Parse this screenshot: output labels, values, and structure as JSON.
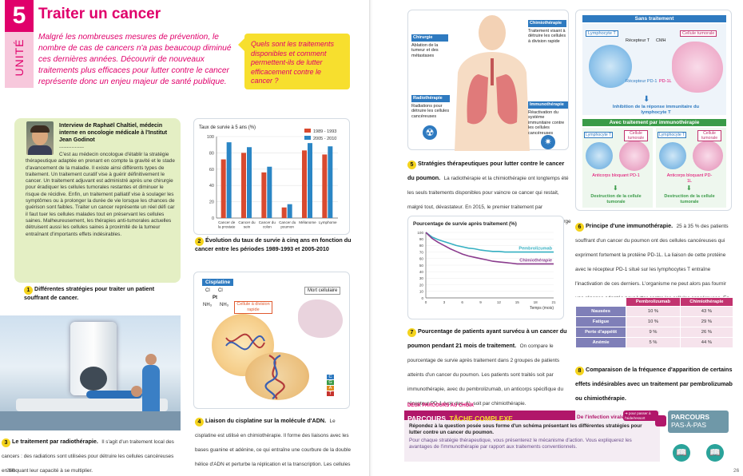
{
  "unit": {
    "number": "5",
    "word": "UNITÉ",
    "title": "Traiter un cancer",
    "intro": "Malgré les nombreuses mesures de prévention, le nombre de cas de cancers n'a pas beaucoup diminué ces dernières années. Découvrir de nouveaux traitements plus efficaces pour lutter contre le cancer représente donc un enjeu majeur de santé publique.",
    "question": "Quels sont les traitements disponibles et comment permettent-ils de lutter efficacement contre le cancer ?"
  },
  "doc1": {
    "num": "1",
    "interview_title": "Interview de Raphaël Chaltiel, médecin interne en oncologie médicale à l'Institut Jean Godinot",
    "dots": "................",
    "text": "C'est au médecin oncologue d'établir la stratégie thérapeutique adaptée en prenant en compte la gravité et le stade d'avancement de la maladie. Il existe ainsi différents types de traitement. Un traitement curatif vise à guérir définitivement le cancer. Un traitement adjuvant est administré après une chirurgie pour éradiquer les cellules tumorales restantes et diminuer le risque de récidive. Enfin, un traitement palliatif vise à soulager les symptômes ou à prolonger la durée de vie lorsque les chances de guérison sont faibles. Traiter un cancer représente un réel défi car il faut tuer les cellules malades tout en préservant les cellules saines. Malheureusement, les thérapies anti-tumorales actuelles détruisent aussi les cellules saines à proximité de la tumeur entraînant d'importants effets indésirables.",
    "caption": "Différentes stratégies pour traiter un patient souffrant de cancer."
  },
  "doc2": {
    "num": "2",
    "caption": "Évolution du taux de survie à cinq ans en fonction du cancer entre les périodes 1989-1993 et 2005-2010"
  },
  "doc3": {
    "num": "3",
    "caption_bold": "Le traitement par radiothérapie.",
    "caption_text": "Il s'agit d'un traitement local des cancers : des radiations sont utilisées pour détruire les cellules cancéreuses en bloquant leur capacité à se multiplier."
  },
  "doc4": {
    "num": "4",
    "caption_bold": "Liaison du cisplatine sur la molécule d'ADN.",
    "caption_text": "Le cisplatine est utilisé en chimiothérapie. Il forme des liaisons avec les bases guanine et adénine, ce qui entraîne une courbure de la double hélice d'ADN et perturbe la réplication et la transcription. Les cellules en division rapide sont ainsi tuées. Les cellules matures, qui ne se divisent pas (ou peu) sont épargnées.",
    "label_cisplatine": "Cisplatine",
    "label_cellule": "Cellule à division rapide",
    "label_mort": "Mort cellulaire",
    "formula_cl1": "Cl",
    "formula_cl2": "Cl",
    "formula_pt": "Pt",
    "formula_nh1": "NH₃",
    "formula_nh2": "NH₃",
    "bases": [
      "C",
      "G",
      "A",
      "T"
    ]
  },
  "doc5": {
    "num": "5",
    "caption_bold": "Stratégies thérapeutiques pour lutter contre le cancer du poumon.",
    "caption_text": "La radiothérapie et la chimiothérapie ont longtemps été les seuls traitements disponibles pour vaincre ce cancer qui restait, malgré tout, dévastateur. En 2015, le premier traitement par immunothérapie est mis sur le marché et révolutionne la prise en charge du cancer du poumon.",
    "chir_title": "Chirurgie",
    "chir_text": "Ablation de la tumeur et des métastases",
    "chimio_title": "Chimiothérapie",
    "chimio_text": "Traitement visant à détruire les cellules à division rapide",
    "radio_title": "Radiothérapie",
    "radio_text": "Radiations pour détruire les cellules cancéreuses",
    "immuno_title": "Immunothérapie",
    "immuno_text": "Réactivation du système immunitaire contre les cellules cancéreuses"
  },
  "doc6": {
    "num": "6",
    "caption_bold": "Principe d'une immunothérapie.",
    "caption_text": "25 à 35 % des patients souffrant d'un cancer du poumon ont des cellules cancéreuses qui expriment fortement la protéine PD-1L. La liaison de cette protéine avec le récepteur PD-1 situé sur les lymphocytes T entraîne l'inactivation de ces derniers. L'organisme ne peut alors pas fournir une réponse adaptée pour lutter contre les cellules cancéreuses. En bloquant la liaison PD-1-PD-1L, l'immunothérapie permet de lever cette inhibition. Il existe d'autres immunothérapies comme la vaccination thérapeutique (voir chapitre 10).",
    "sans_title": "Sans traitement",
    "lympho": "Lymphocyte T",
    "tumorale": "Cellule tumorale",
    "recepteur_tcr": "Récepteur T",
    "cmh": "CMH",
    "recepteur_pd1": "Récepteur PD-1",
    "pd1l": "PD-1L",
    "inhibition": "Inhibition de la réponse immunitaire du lymphocyte T",
    "avec_title": "Avec traitement par immunothérapie",
    "lympho2": "Lymphocyte T",
    "tumorale2": "Cellule tumorale",
    "lympho3": "Lymphocyte T",
    "tumorale3": "Cellule tumorale",
    "anticorps1": "Anticorps bloquant PD-1",
    "anticorps2": "Anticorps bloquant PD-1L",
    "destruction1": "Destruction de la cellule tumorale",
    "destruction2": "Destruction de la cellule tumorale"
  },
  "doc7": {
    "num": "7",
    "caption_bold": "Pourcentage de patients ayant survécu à un cancer du poumon pendant 21 mois de traitement.",
    "caption_text": "On compare le pourcentage de survie après traitement dans 2 groupes de patients atteints d'un cancer du poumon. Les patients sont traités soit par immunothérapie, avec du pembrolizumab, un anticorps spécifique du récepteur PD-1 (voir doc. 6), soit par chimiothérapie."
  },
  "doc8": {
    "num": "8",
    "caption_bold": "Comparaison de la fréquence d'apparition de certains effets indésirables avec un traitement par pembrolizumab ou chimiothérapie.",
    "headers": [
      "",
      "Pembrolizumab",
      "Chimiothérapie"
    ],
    "rows": [
      [
        "Nausées",
        "10 %",
        "43 %"
      ],
      [
        "Fatigue",
        "10 %",
        "29 %"
      ],
      [
        "Perte d'appétit",
        "9 %",
        "26 %"
      ],
      [
        "Anémie",
        "5 %",
        "44 %"
      ]
    ]
  },
  "parcours": {
    "deux": "DEUX PARCOURS AU CHOIX",
    "title_a": "PARCOURS",
    "title_b": "TÂCHE COMPLEXE",
    "tag": "De l'infection virale à",
    "pill": "➜ pour passer à l'aide/ressort",
    "task_bold": "Répondez à la question posée sous forme d'un schéma présentant les différentes stratégies pour lutter contre un cancer du poumon.",
    "task_text": "Pour chaque stratégie thérapeutique, vous présenterez le mécanisme d'action. Vous expliquerez les avantages de l'immunothérapie par rapport aux traitements conventionnels.",
    "pas_a": "PARCOURS",
    "pas_b": "PAS-À-PAS"
  },
  "page_left": "266",
  "page_right": "26",
  "chart_data": [
    {
      "type": "bar",
      "ylabel": "Taux de survie à 5 ans (%)",
      "ylim": [
        0,
        100
      ],
      "yticks": [
        0,
        20,
        40,
        60,
        80,
        100
      ],
      "categories": [
        "Cancer de la prostate",
        "Cancer du sein",
        "Cancer du colon",
        "Cancer du poumon",
        "Mélanome",
        "Lymphome"
      ],
      "series": [
        {
          "name": "1989 - 1993",
          "color": "#d94a2f",
          "values": [
            72,
            80,
            56,
            13,
            83,
            78
          ]
        },
        {
          "name": "2005 - 2010",
          "color": "#2b86c5",
          "values": [
            93,
            87,
            63,
            17,
            92,
            88
          ]
        }
      ]
    },
    {
      "type": "line",
      "title": "Pourcentage de survie après traitement (%)",
      "xlabel": "Temps (mois)",
      "xlim": [
        0,
        21
      ],
      "ylim": [
        0,
        100
      ],
      "xticks": [
        0,
        3,
        6,
        9,
        12,
        15,
        18,
        21
      ],
      "yticks": [
        0,
        10,
        20,
        30,
        40,
        50,
        60,
        70,
        80,
        90,
        100
      ],
      "series": [
        {
          "name": "Pembrolizumab",
          "color": "#35b0c2",
          "x": [
            0,
            1,
            2,
            3,
            4,
            5,
            6,
            7,
            8,
            9,
            10,
            11,
            12,
            13,
            14,
            15,
            16,
            17,
            18,
            19,
            20,
            21
          ],
          "y": [
            100,
            93,
            89,
            86,
            83,
            80,
            78,
            76,
            75,
            73,
            72,
            71,
            71,
            70,
            70,
            70,
            70,
            70,
            70,
            70,
            70,
            70
          ]
        },
        {
          "name": "Chimiothérapie",
          "color": "#8a3b8d",
          "x": [
            0,
            1,
            2,
            3,
            4,
            5,
            6,
            7,
            8,
            9,
            10,
            11,
            12,
            13,
            14,
            15,
            16,
            17,
            18,
            19,
            20,
            21
          ],
          "y": [
            100,
            91,
            85,
            80,
            75,
            71,
            67,
            64,
            62,
            60,
            58,
            56,
            55,
            54,
            53,
            52,
            52,
            52,
            52,
            52,
            52,
            52
          ]
        }
      ]
    }
  ]
}
